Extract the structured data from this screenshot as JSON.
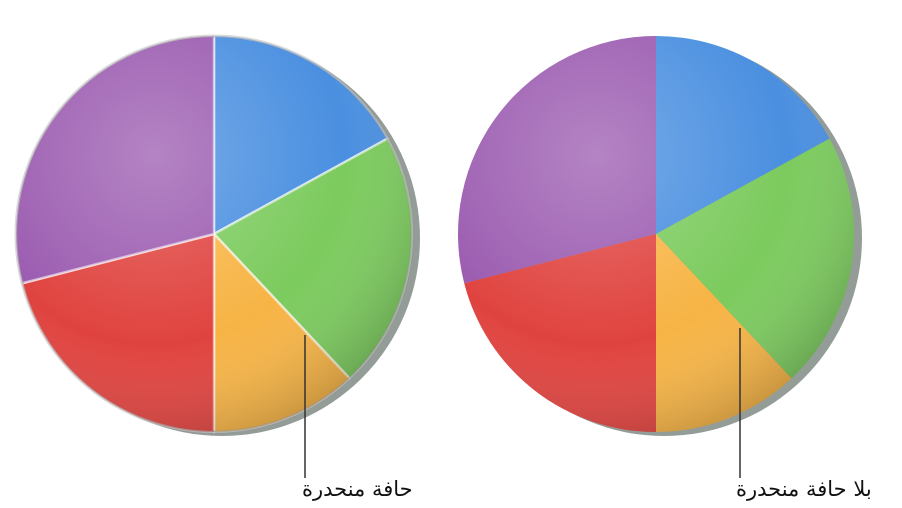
{
  "chart_data": [
    {
      "type": "pie",
      "title": "",
      "annotation": "حافة منحدرة",
      "bevel": true,
      "categories": [
        "blue",
        "green",
        "yellow",
        "red",
        "purple"
      ],
      "values": [
        17,
        21,
        12,
        21,
        29
      ],
      "colors": [
        "#4a8fe0",
        "#7ccb5e",
        "#f7b445",
        "#e0433f",
        "#9b5bb0"
      ]
    },
    {
      "type": "pie",
      "title": "",
      "annotation": "بلا حافة منحدرة",
      "bevel": false,
      "categories": [
        "blue",
        "green",
        "yellow",
        "red",
        "purple"
      ],
      "values": [
        17,
        21,
        12,
        21,
        29
      ],
      "colors": [
        "#4a8fe0",
        "#7ccb5e",
        "#f7b445",
        "#e0433f",
        "#9b5bb0"
      ]
    }
  ]
}
